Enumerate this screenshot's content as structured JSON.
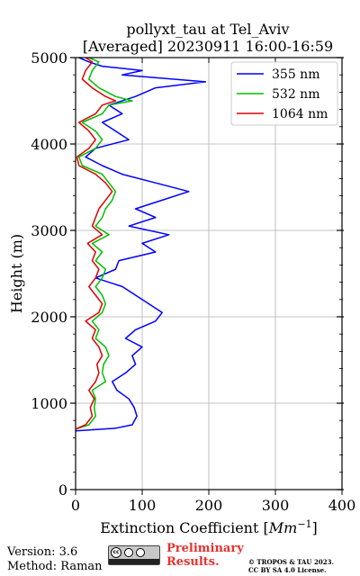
{
  "chart_data": {
    "type": "line",
    "title": "pollyxt_tau at Tel_Aviv",
    "subtitle": "[Averaged] 20230911 16:00-16:59",
    "xlabel": "Extinction Coefficient [",
    "xlabel_unit": "Mm",
    "xlabel_exp": "−1",
    "xlabel_close": "]",
    "ylabel": "Height (m)",
    "xlim": [
      0,
      400
    ],
    "ylim": [
      0,
      5000
    ],
    "x_ticks": [
      "0",
      "100",
      "200",
      "300",
      "400"
    ],
    "y_ticks": [
      "0",
      "1000",
      "2000",
      "3000",
      "4000",
      "5000"
    ],
    "grid": true,
    "legend_position": "top-right",
    "series": [
      {
        "name": "355 nm",
        "color": "#0000ff",
        "points": [
          [
            0,
            680
          ],
          [
            60,
            710
          ],
          [
            85,
            750
          ],
          [
            92,
            850
          ],
          [
            88,
            950
          ],
          [
            80,
            1050
          ],
          [
            62,
            1150
          ],
          [
            55,
            1250
          ],
          [
            75,
            1350
          ],
          [
            90,
            1450
          ],
          [
            85,
            1550
          ],
          [
            100,
            1650
          ],
          [
            75,
            1750
          ],
          [
            90,
            1850
          ],
          [
            120,
            1950
          ],
          [
            130,
            2050
          ],
          [
            110,
            2150
          ],
          [
            90,
            2250
          ],
          [
            70,
            2350
          ],
          [
            30,
            2450
          ],
          [
            60,
            2550
          ],
          [
            65,
            2650
          ],
          [
            120,
            2750
          ],
          [
            100,
            2850
          ],
          [
            140,
            2950
          ],
          [
            80,
            3050
          ],
          [
            120,
            3150
          ],
          [
            90,
            3250
          ],
          [
            130,
            3350
          ],
          [
            170,
            3450
          ],
          [
            120,
            3550
          ],
          [
            70,
            3650
          ],
          [
            40,
            3750
          ],
          [
            15,
            3850
          ],
          [
            30,
            3950
          ],
          [
            80,
            4050
          ],
          [
            60,
            4150
          ],
          [
            40,
            4250
          ],
          [
            70,
            4350
          ],
          [
            50,
            4450
          ],
          [
            90,
            4550
          ],
          [
            120,
            4650
          ],
          [
            195,
            4720
          ],
          [
            70,
            4800
          ],
          [
            100,
            4850
          ],
          [
            40,
            4900
          ],
          [
            20,
            4950
          ],
          [
            5,
            5000
          ]
        ]
      },
      {
        "name": "532 nm",
        "color": "#00c000",
        "points": [
          [
            0,
            700
          ],
          [
            20,
            750
          ],
          [
            30,
            850
          ],
          [
            28,
            950
          ],
          [
            30,
            1050
          ],
          [
            25,
            1150
          ],
          [
            45,
            1250
          ],
          [
            40,
            1350
          ],
          [
            42,
            1450
          ],
          [
            50,
            1550
          ],
          [
            45,
            1650
          ],
          [
            30,
            1750
          ],
          [
            35,
            1850
          ],
          [
            25,
            1950
          ],
          [
            40,
            2050
          ],
          [
            45,
            2150
          ],
          [
            40,
            2250
          ],
          [
            30,
            2350
          ],
          [
            40,
            2450
          ],
          [
            45,
            2550
          ],
          [
            30,
            2650
          ],
          [
            40,
            2750
          ],
          [
            25,
            2850
          ],
          [
            50,
            2950
          ],
          [
            30,
            3050
          ],
          [
            40,
            3150
          ],
          [
            45,
            3250
          ],
          [
            55,
            3350
          ],
          [
            60,
            3450
          ],
          [
            50,
            3550
          ],
          [
            40,
            3650
          ],
          [
            10,
            3750
          ],
          [
            5,
            3850
          ],
          [
            30,
            3950
          ],
          [
            40,
            4050
          ],
          [
            30,
            4150
          ],
          [
            10,
            4250
          ],
          [
            40,
            4350
          ],
          [
            50,
            4450
          ],
          [
            85,
            4500
          ],
          [
            60,
            4550
          ],
          [
            35,
            4650
          ],
          [
            20,
            4750
          ],
          [
            25,
            4850
          ],
          [
            35,
            4950
          ],
          [
            20,
            5000
          ]
        ]
      },
      {
        "name": "1064 nm",
        "color": "#e00000",
        "points": [
          [
            0,
            700
          ],
          [
            15,
            750
          ],
          [
            25,
            850
          ],
          [
            22,
            950
          ],
          [
            28,
            1050
          ],
          [
            20,
            1150
          ],
          [
            30,
            1250
          ],
          [
            35,
            1350
          ],
          [
            32,
            1450
          ],
          [
            40,
            1550
          ],
          [
            35,
            1650
          ],
          [
            25,
            1750
          ],
          [
            30,
            1850
          ],
          [
            15,
            1950
          ],
          [
            35,
            2050
          ],
          [
            40,
            2150
          ],
          [
            30,
            2250
          ],
          [
            20,
            2350
          ],
          [
            30,
            2450
          ],
          [
            35,
            2550
          ],
          [
            25,
            2650
          ],
          [
            30,
            2750
          ],
          [
            18,
            2850
          ],
          [
            40,
            2950
          ],
          [
            25,
            3050
          ],
          [
            30,
            3150
          ],
          [
            35,
            3250
          ],
          [
            45,
            3350
          ],
          [
            55,
            3450
          ],
          [
            45,
            3550
          ],
          [
            30,
            3650
          ],
          [
            5,
            3750
          ],
          [
            2,
            3850
          ],
          [
            20,
            3950
          ],
          [
            30,
            4050
          ],
          [
            20,
            4150
          ],
          [
            5,
            4250
          ],
          [
            30,
            4350
          ],
          [
            40,
            4450
          ],
          [
            60,
            4500
          ],
          [
            45,
            4550
          ],
          [
            25,
            4650
          ],
          [
            10,
            4750
          ],
          [
            15,
            4850
          ],
          [
            25,
            4950
          ],
          [
            15,
            5000
          ]
        ]
      }
    ]
  },
  "footer": {
    "version": "Version: 3.6",
    "method": "Method: Raman",
    "license_icon": "cc-by-sa-badge",
    "preliminary_line1": "Preliminary",
    "preliminary_line2": "Results.",
    "copyright_line1": "© TROPOS & TAU 2023.",
    "copyright_line2": "CC BY SA 4.0 License."
  }
}
